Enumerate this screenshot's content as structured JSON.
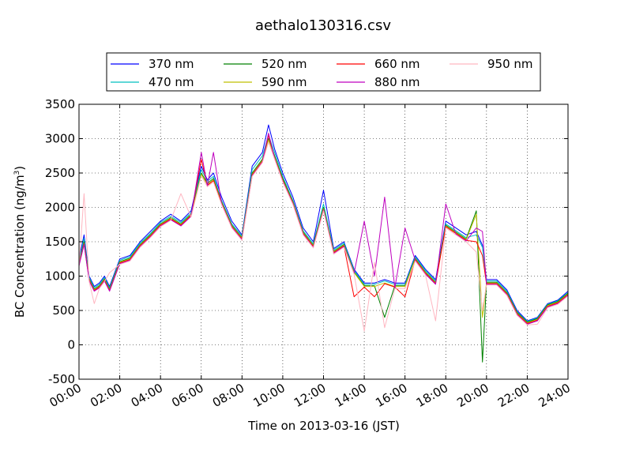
{
  "chart_data": {
    "type": "line",
    "title": "aethalo130316.csv",
    "xlabel": "Time on 2013-03-16 (JST)",
    "ylabel_main": "BC Concentration (ng/m",
    "ylabel_sup": "3",
    "ylabel_close": ")",
    "xlim": [
      "00:00",
      "24:00"
    ],
    "ylim": [
      -500,
      3500
    ],
    "x_ticks": [
      "00:00",
      "02:00",
      "04:00",
      "06:00",
      "08:00",
      "10:00",
      "12:00",
      "14:00",
      "16:00",
      "18:00",
      "20:00",
      "22:00",
      "24:00"
    ],
    "y_ticks": [
      "-500",
      "0",
      "500",
      "1000",
      "1500",
      "2000",
      "2500",
      "3000",
      "3500"
    ],
    "grid": true,
    "legend_position": "top-center",
    "x_hours": [
      0,
      0.25,
      0.5,
      0.75,
      1.0,
      1.25,
      1.5,
      2.0,
      2.5,
      3.0,
      3.5,
      4.0,
      4.5,
      5.0,
      5.5,
      6.0,
      6.3,
      6.6,
      7.0,
      7.5,
      8.0,
      8.5,
      9.0,
      9.3,
      9.6,
      10.0,
      10.5,
      11.0,
      11.5,
      12.0,
      12.5,
      13.0,
      13.5,
      14.0,
      14.5,
      15.0,
      15.5,
      16.0,
      16.5,
      17.0,
      17.5,
      18.0,
      18.5,
      19.0,
      19.5,
      19.8,
      20.0,
      20.5,
      21.0,
      21.5,
      22.0,
      22.5,
      23.0,
      23.5,
      24.0
    ],
    "series": [
      {
        "name": "370 nm",
        "color": "#0000ff",
        "values": [
          1250,
          1600,
          1000,
          850,
          900,
          1000,
          850,
          1250,
          1300,
          1500,
          1650,
          1800,
          1900,
          1800,
          1950,
          2600,
          2400,
          2500,
          2150,
          1800,
          1600,
          2600,
          2800,
          3200,
          2850,
          2500,
          2150,
          1700,
          1500,
          2250,
          1400,
          1500,
          1100,
          900,
          900,
          950,
          900,
          900,
          1300,
          1100,
          950,
          1800,
          1700,
          1600,
          1650,
          1450,
          950,
          950,
          800,
          500,
          350,
          400,
          600,
          650,
          780
        ]
      },
      {
        "name": "470 nm",
        "color": "#00bfbf",
        "values": [
          1200,
          1550,
          980,
          830,
          880,
          980,
          830,
          1230,
          1280,
          1480,
          1620,
          1780,
          1870,
          1780,
          1920,
          2550,
          2380,
          2450,
          2100,
          1760,
          1580,
          2550,
          2750,
          3050,
          2800,
          2450,
          2100,
          1660,
          1470,
          2050,
          1380,
          1480,
          1080,
          880,
          880,
          930,
          880,
          880,
          1280,
          1080,
          930,
          1760,
          1660,
          1560,
          1600,
          1420,
          930,
          930,
          780,
          480,
          340,
          390,
          590,
          640,
          760
        ]
      },
      {
        "name": "520 nm",
        "color": "#008000",
        "values": [
          1180,
          1500,
          960,
          810,
          860,
          960,
          810,
          1210,
          1260,
          1460,
          1600,
          1760,
          1850,
          1760,
          1900,
          2500,
          2350,
          2420,
          2080,
          1740,
          1560,
          2500,
          2700,
          3000,
          2750,
          2420,
          2080,
          1640,
          1450,
          2000,
          1360,
          1460,
          1060,
          860,
          860,
          400,
          860,
          860,
          1260,
          1060,
          910,
          1740,
          1640,
          1540,
          1950,
          -250,
          910,
          910,
          760,
          470,
          330,
          380,
          580,
          630,
          750
        ]
      },
      {
        "name": "590 nm",
        "color": "#bfbf00",
        "values": [
          1170,
          1480,
          950,
          800,
          850,
          950,
          800,
          1200,
          1250,
          1450,
          1590,
          1750,
          1840,
          1750,
          1890,
          2480,
          2330,
          2400,
          2070,
          1730,
          1550,
          2480,
          2680,
          2980,
          2730,
          2400,
          2070,
          1630,
          1440,
          1980,
          1350,
          1450,
          1050,
          850,
          850,
          900,
          850,
          850,
          1250,
          1050,
          900,
          1730,
          1630,
          1530,
          1900,
          400,
          900,
          900,
          750,
          460,
          320,
          370,
          570,
          620,
          740
        ]
      },
      {
        "name": "660 nm",
        "color": "#ff0000",
        "values": [
          1160,
          1470,
          940,
          790,
          840,
          940,
          790,
          1190,
          1240,
          1440,
          1580,
          1740,
          1830,
          1740,
          1880,
          2700,
          2320,
          2390,
          2060,
          1720,
          1540,
          2470,
          2670,
          3050,
          2720,
          2390,
          2060,
          1620,
          1430,
          1970,
          1340,
          1440,
          700,
          840,
          700,
          890,
          840,
          700,
          1240,
          1040,
          890,
          1720,
          1620,
          1520,
          1500,
          1300,
          890,
          890,
          740,
          450,
          310,
          360,
          560,
          610,
          730
        ]
      },
      {
        "name": "880 nm",
        "color": "#bf00bf",
        "values": [
          1150,
          1460,
          930,
          780,
          830,
          930,
          780,
          1180,
          1230,
          1430,
          1570,
          1730,
          1820,
          1730,
          1870,
          2800,
          2310,
          2800,
          2050,
          1710,
          1530,
          2460,
          2660,
          3080,
          2710,
          2380,
          2050,
          1610,
          1420,
          1960,
          1330,
          1430,
          1040,
          1800,
          1000,
          2150,
          830,
          1700,
          1230,
          1030,
          880,
          2050,
          1610,
          1510,
          1700,
          1650,
          880,
          880,
          730,
          440,
          300,
          350,
          550,
          600,
          720
        ]
      },
      {
        "name": "950 nm",
        "color": "#ffb6c1",
        "values": [
          1140,
          2200,
          920,
          600,
          820,
          920,
          1050,
          1170,
          1220,
          1420,
          1560,
          1720,
          1810,
          2200,
          1860,
          2460,
          2300,
          2370,
          2040,
          1700,
          1520,
          2450,
          2650,
          2950,
          2700,
          2370,
          2040,
          1600,
          1410,
          1950,
          1320,
          1420,
          1030,
          200,
          1200,
          250,
          820,
          820,
          1220,
          1020,
          350,
          1700,
          1600,
          1500,
          1350,
          500,
          870,
          870,
          720,
          430,
          290,
          300,
          540,
          590,
          710
        ]
      }
    ]
  }
}
